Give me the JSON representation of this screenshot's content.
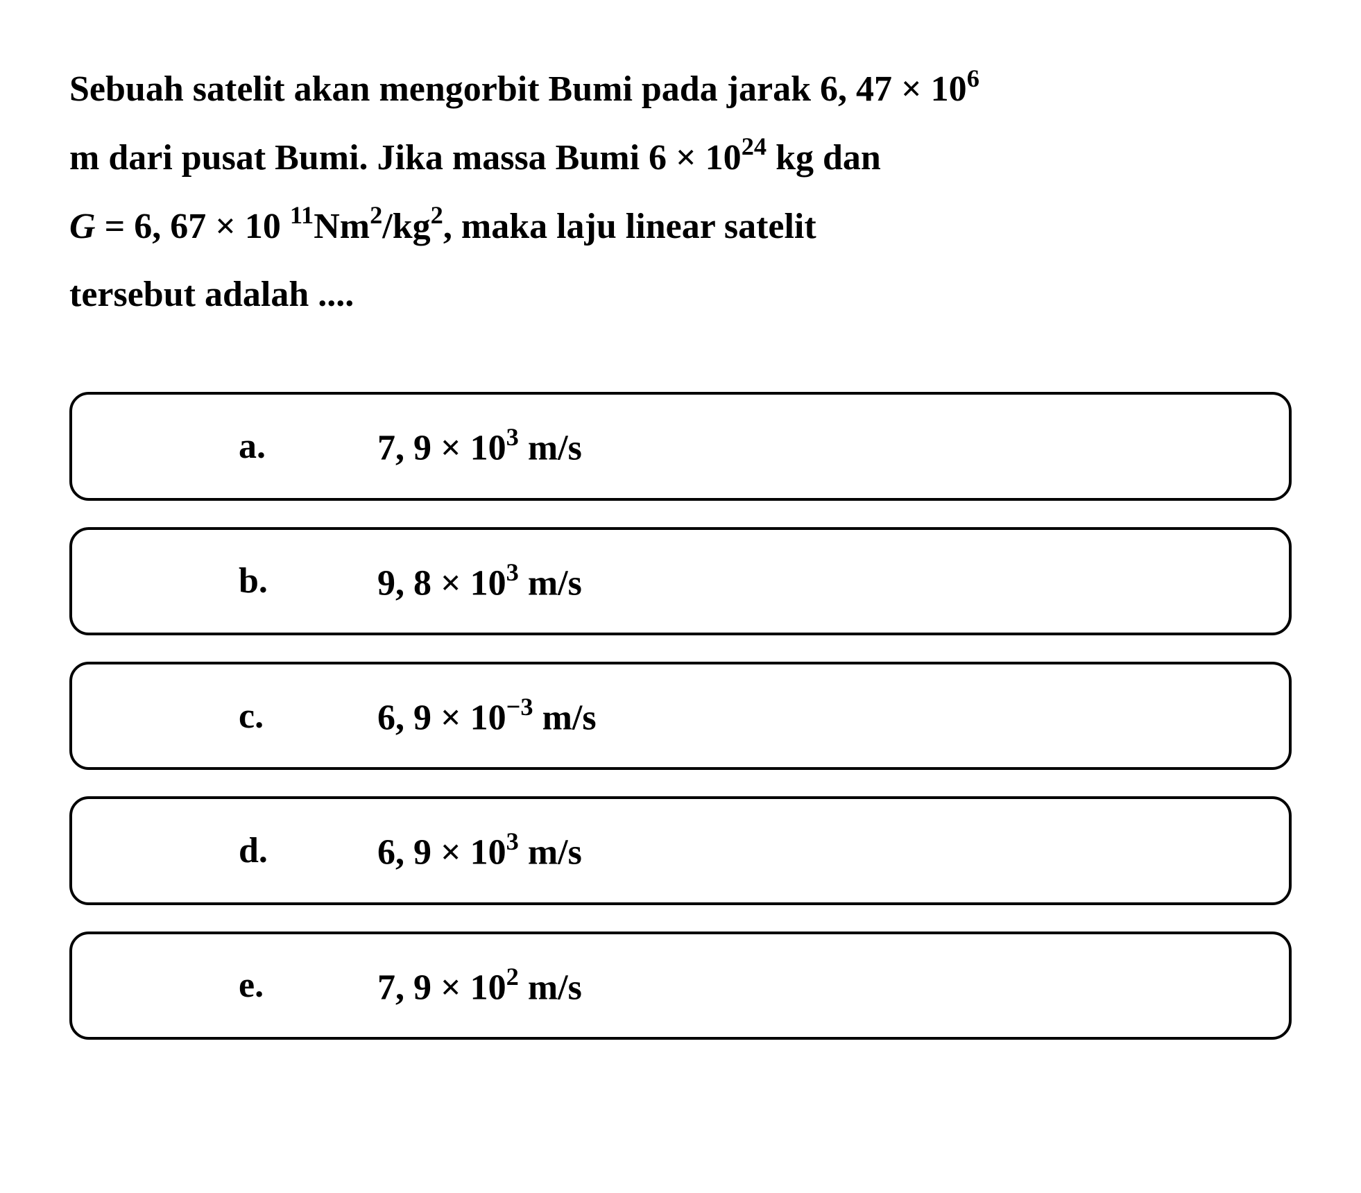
{
  "question": {
    "text_color": "#000000",
    "background_color": "#ffffff",
    "font_size": 52,
    "line1_pre": "Sebuah satelit akan mengorbit Bumi pada jarak ",
    "val1": "6, 47 × 10",
    "exp1": "6",
    "line2_pre": "m dari pusat Bumi. Jika massa Bumi ",
    "val2": "6 × 10",
    "exp2": "24",
    "line2_post": " kg dan",
    "line3_g": "G",
    "line3_eq": " = 6, 67 × 10",
    "line3_space": "  ",
    "exp3": "11",
    "line3_nm": "Nm",
    "exp4": "2",
    "line3_slash": "/kg",
    "exp5": "2",
    "line3_post": ", maka laju linear satelit",
    "line4": "tersebut adalah ...."
  },
  "options": {
    "border_color": "#000000",
    "border_width": 4,
    "border_radius": 28,
    "font_size": 52,
    "items": [
      {
        "letter": "a.",
        "prefix": "7, 9 × 10",
        "exp": "3",
        "suffix": " m/s"
      },
      {
        "letter": "b.",
        "prefix": "9, 8 × 10",
        "exp": "3",
        "suffix": " m/s"
      },
      {
        "letter": "c.",
        "prefix": "6, 9 × 10",
        "exp": "−3",
        "suffix": " m/s"
      },
      {
        "letter": "d.",
        "prefix": "6, 9 × 10",
        "exp": "3",
        "suffix": " m/s"
      },
      {
        "letter": "e.",
        "prefix": "7, 9 × 10",
        "exp": "2",
        "suffix": " m/s"
      }
    ]
  }
}
